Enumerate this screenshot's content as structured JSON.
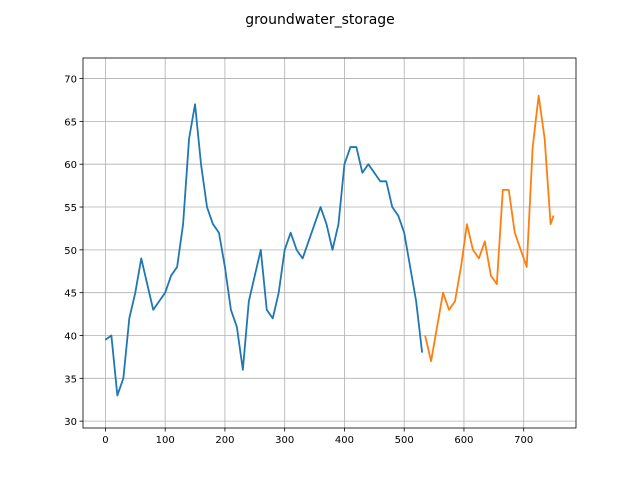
{
  "chart_data": {
    "type": "line",
    "title": "groundwater_storage",
    "xlim": [
      -37.5,
      787.5
    ],
    "ylim": [
      29.2,
      72.4
    ],
    "xticks": [
      0,
      100,
      200,
      300,
      400,
      500,
      600,
      700
    ],
    "yticks": [
      30,
      35,
      40,
      45,
      50,
      55,
      60,
      65,
      70
    ],
    "grid": true,
    "series": [
      {
        "color": "#1f77b4",
        "x": [
          0,
          10,
          20,
          30,
          40,
          50,
          60,
          70,
          80,
          90,
          100,
          110,
          120,
          130,
          140,
          150,
          160,
          170,
          180,
          190,
          200,
          210,
          220,
          230,
          240,
          250,
          260,
          270,
          280,
          290,
          300,
          310,
          320,
          330,
          340,
          350,
          360,
          370,
          380,
          390,
          400,
          410,
          420,
          430,
          440,
          450,
          460,
          470,
          480,
          490,
          500,
          510,
          520,
          530
        ],
        "values": [
          39.5,
          40,
          33,
          35,
          42,
          45,
          49,
          46,
          43,
          44,
          45,
          47,
          48,
          53,
          63,
          67,
          60,
          55,
          53,
          52,
          48,
          43,
          41,
          36,
          44,
          47,
          50,
          43,
          42,
          45,
          50,
          52,
          50,
          49,
          51,
          53,
          55,
          53,
          50,
          53,
          60,
          62,
          62,
          59,
          60,
          59,
          58,
          58,
          55,
          54,
          52,
          48,
          44,
          38
        ]
      },
      {
        "color": "#ff7f0e",
        "x": [
          535,
          545,
          555,
          565,
          575,
          585,
          595,
          605,
          615,
          625,
          635,
          645,
          655,
          665,
          675,
          685,
          695,
          705,
          715,
          725,
          735,
          745,
          750
        ],
        "values": [
          40,
          37,
          41,
          45,
          43,
          44,
          48,
          53,
          50,
          49,
          51,
          47,
          46,
          57,
          57,
          52,
          50,
          48,
          62,
          68,
          63,
          53,
          54
        ]
      }
    ]
  }
}
